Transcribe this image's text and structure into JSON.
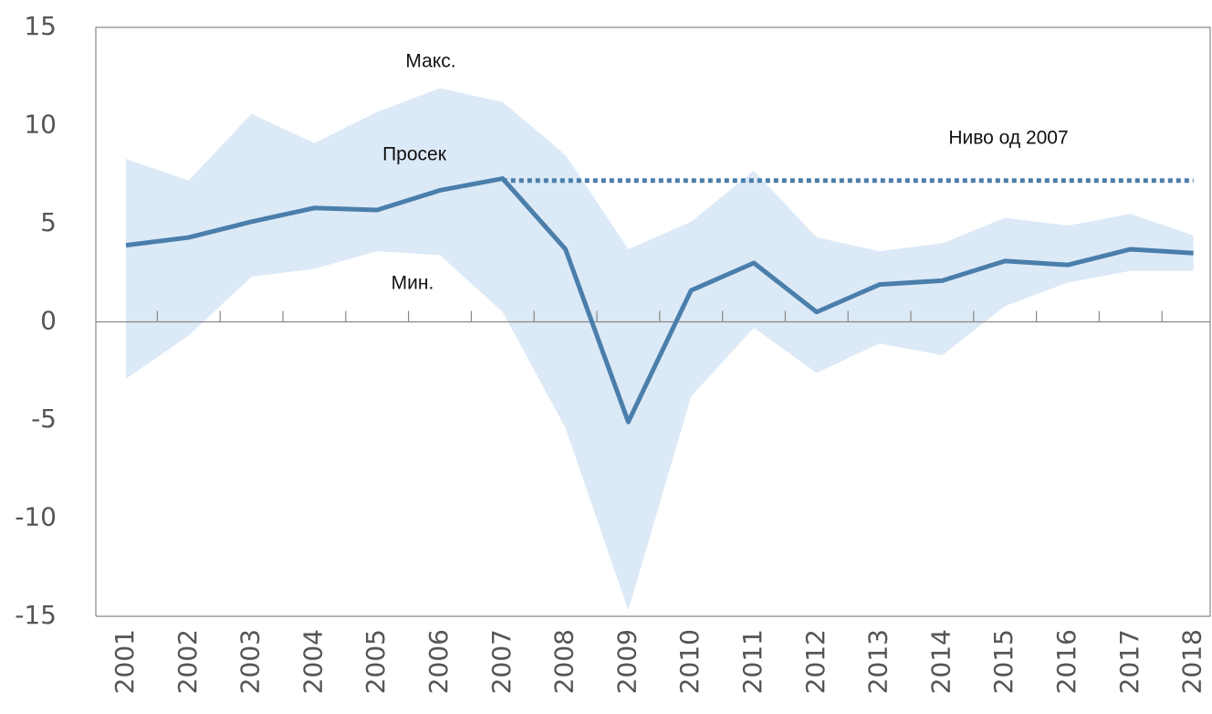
{
  "chart_data": {
    "type": "line",
    "categories": [
      "2001",
      "2002",
      "2003",
      "2004",
      "2005",
      "2006",
      "2007",
      "2008",
      "2009",
      "2010",
      "2011",
      "2012",
      "2013",
      "2014",
      "2015",
      "2016",
      "2017",
      "2018"
    ],
    "series": [
      {
        "name": "Макс.",
        "color": "#dce9f6",
        "values": [
          8.3,
          7.2,
          10.6,
          9.1,
          10.7,
          11.9,
          11.2,
          8.5,
          3.7,
          5.1,
          7.7,
          4.3,
          3.6,
          4.0,
          5.3,
          4.9,
          5.5,
          4.4
        ]
      },
      {
        "name": "Просек",
        "color": "#4a7eab",
        "values": [
          3.9,
          4.3,
          5.1,
          5.8,
          5.7,
          6.7,
          7.3,
          3.7,
          -5.1,
          1.6,
          3.0,
          0.5,
          1.9,
          2.1,
          3.1,
          2.9,
          3.7,
          3.5
        ]
      },
      {
        "name": "Мин.",
        "color": "#dce9f6",
        "values": [
          -2.9,
          -0.7,
          2.3,
          2.7,
          3.6,
          3.4,
          0.5,
          -5.4,
          -14.7,
          -3.8,
          -0.3,
          -2.6,
          -1.1,
          -1.7,
          0.8,
          2.0,
          2.6,
          2.6
        ]
      },
      {
        "name": "Ниво од 2007",
        "color": "#4a7eab",
        "dashed": true,
        "values": [
          null,
          null,
          null,
          null,
          null,
          null,
          7.2,
          7.2,
          7.2,
          7.2,
          7.2,
          7.2,
          7.2,
          7.2,
          7.2,
          7.2,
          7.2,
          7.2
        ]
      }
    ],
    "ylim": [
      -15,
      15
    ],
    "yticks": [
      -15,
      -10,
      -5,
      0,
      5,
      10,
      15
    ]
  }
}
